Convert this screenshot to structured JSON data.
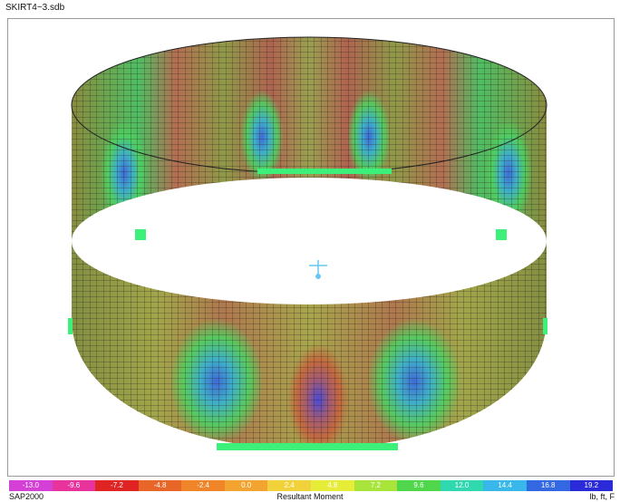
{
  "window": {
    "title": "SKIRT4~3.sdb"
  },
  "legend": {
    "ticks": [
      "-13.0",
      "-9.6",
      "-7.2",
      "-4.8",
      "-2.4",
      "0.0",
      "2.4",
      "4.8",
      "7.2",
      "9.6",
      "12.0",
      "14.4",
      "16.8",
      "19.2"
    ],
    "colors": [
      "#d43fd6",
      "#e8329c",
      "#e02424",
      "#e86628",
      "#f08428",
      "#f3a330",
      "#f2d23a",
      "#e6ec38",
      "#a8e43a",
      "#4fd64a",
      "#30d8b0",
      "#38b8ea",
      "#3468e2",
      "#2a2ad8"
    ]
  },
  "statusbar": {
    "app": "SAP2000",
    "display_type": "Resultant Moment",
    "units": "lb, ft, F"
  },
  "model": {
    "mesh_color": "#1a1a1a",
    "restraint_color": "#3cf07a",
    "joint_marker_color": "#66c8f0"
  }
}
